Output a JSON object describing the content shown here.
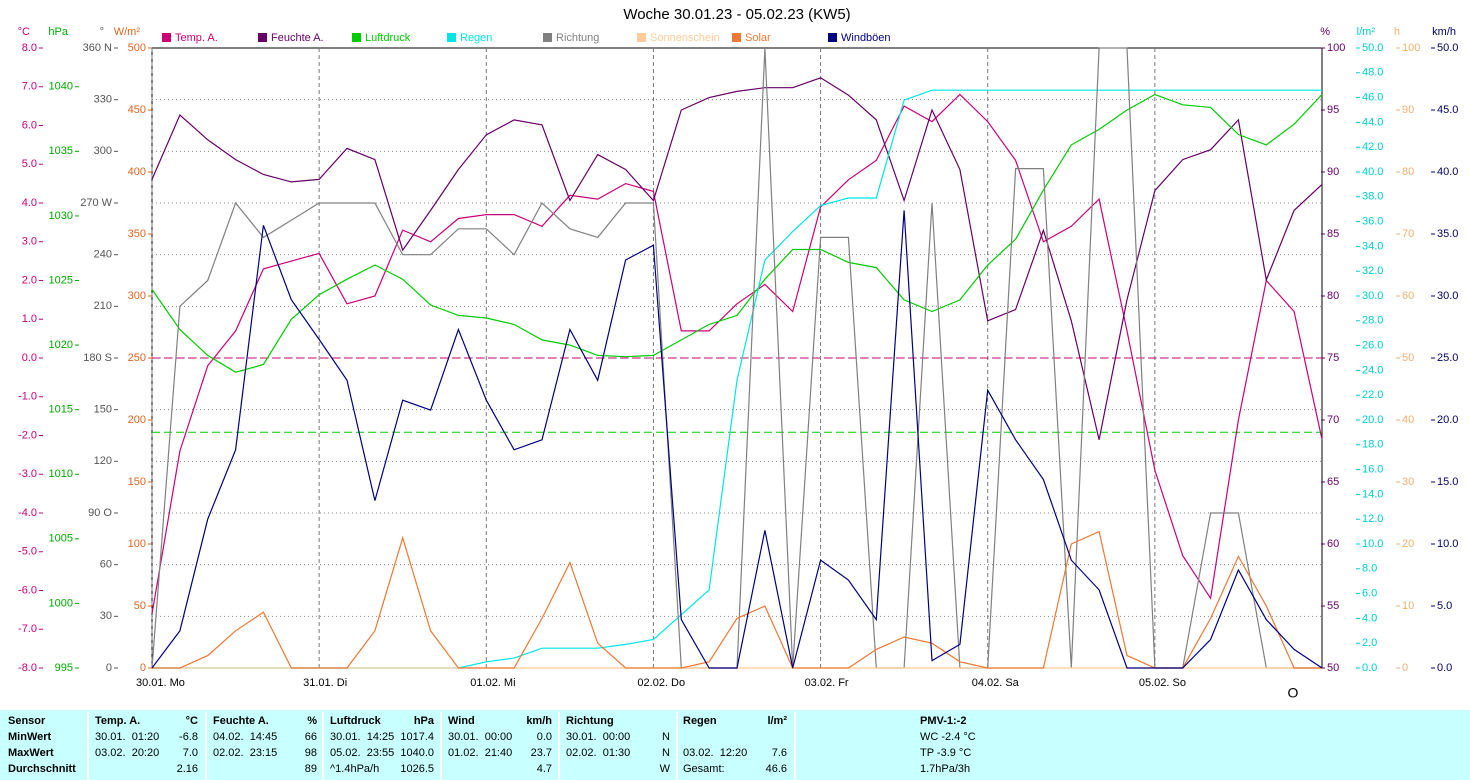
{
  "chart_data": {
    "type": "line",
    "title": "Woche 30.01.23 - 05.02.23 (KW5)",
    "annotation": "O",
    "x": [
      0,
      4,
      8,
      12,
      16,
      20,
      24,
      28,
      32,
      36,
      40,
      44,
      48,
      52,
      56,
      60,
      64,
      68,
      72,
      76,
      80,
      84,
      88,
      92,
      96,
      100,
      104,
      108,
      112,
      116,
      120,
      124,
      128,
      132,
      136,
      140,
      144,
      148,
      152,
      156,
      160,
      164,
      168
    ],
    "xlim": [
      0,
      168
    ],
    "xticks": [
      {
        "value": 0,
        "label": "30.01. Mo"
      },
      {
        "value": 24,
        "label": "31.01. Di"
      },
      {
        "value": 48,
        "label": "01.02. Mi"
      },
      {
        "value": 72,
        "label": "02.02. Do"
      },
      {
        "value": 96,
        "label": "03.02. Fr"
      },
      {
        "value": 120,
        "label": "04.02. Sa"
      },
      {
        "value": 144,
        "label": "05.02. So"
      }
    ],
    "axes": [
      {
        "unit": "°C",
        "color": "#cc0077",
        "lim": [
          -8,
          8
        ],
        "ticks": [
          {
            "value": -8,
            "label": "-8.0"
          },
          {
            "value": -7,
            "label": "-7.0"
          },
          {
            "value": -6,
            "label": "-6.0"
          },
          {
            "value": -5,
            "label": "-5.0"
          },
          {
            "value": -4,
            "label": "-4.0"
          },
          {
            "value": -3,
            "label": "-3.0"
          },
          {
            "value": -2,
            "label": "-2.0"
          },
          {
            "value": -1,
            "label": "-1.0"
          },
          {
            "value": 0,
            "label": "0.0"
          },
          {
            "value": 1,
            "label": "1.0"
          },
          {
            "value": 2,
            "label": "2.0"
          },
          {
            "value": 3,
            "label": "3.0"
          },
          {
            "value": 4,
            "label": "4.0"
          },
          {
            "value": 5,
            "label": "5.0"
          },
          {
            "value": 6,
            "label": "6.0"
          },
          {
            "value": 7,
            "label": "7.0"
          },
          {
            "value": 8,
            "label": "8.0"
          }
        ]
      },
      {
        "unit": "hPa",
        "color": "#00aa00",
        "lim": [
          995,
          1043
        ],
        "ticks": [
          995,
          1000,
          1005,
          1010,
          1015,
          1020,
          1025,
          1030,
          1035,
          1040
        ]
      },
      {
        "unit": "°",
        "color": "#555555",
        "lim": [
          0,
          360
        ],
        "grid": true,
        "ticks": [
          0,
          30,
          60,
          {
            "value": 90,
            "label": "90 O"
          },
          120,
          150,
          {
            "value": 180,
            "label": "180 S"
          },
          210,
          240,
          {
            "value": 270,
            "label": "270 W"
          },
          300,
          330,
          {
            "value": 360,
            "label": "360 N"
          }
        ]
      },
      {
        "unit": "W/m²",
        "color": "#dd6622",
        "lim": [
          0,
          500
        ],
        "ticks": [
          0,
          50,
          100,
          150,
          200,
          250,
          300,
          350,
          400,
          450,
          500
        ]
      },
      {
        "unit": "%",
        "color": "#660066",
        "lim": [
          50,
          100
        ],
        "ticks": [
          50,
          55,
          60,
          65,
          70,
          75,
          80,
          85,
          90,
          95,
          100
        ]
      },
      {
        "unit": "l/m²",
        "color": "#00cccc",
        "lim": [
          0,
          50
        ],
        "ticks": [
          {
            "value": 0,
            "label": "0.0"
          },
          {
            "value": 2,
            "label": "2.0"
          },
          {
            "value": 4,
            "label": "4.0"
          },
          {
            "value": 6,
            "label": "6.0"
          },
          {
            "value": 8,
            "label": "8.0"
          },
          {
            "value": 10,
            "label": "10.0"
          },
          {
            "value": 12,
            "label": "12.0"
          },
          {
            "value": 14,
            "label": "14.0"
          },
          {
            "value": 16,
            "label": "16.0"
          },
          {
            "value": 18,
            "label": "18.0"
          },
          {
            "value": 20,
            "label": "20.0"
          },
          {
            "value": 22,
            "label": "22.0"
          },
          {
            "value": 24,
            "label": "24.0"
          },
          {
            "value": 26,
            "label": "26.0"
          },
          {
            "value": 28,
            "label": "28.0"
          },
          {
            "value": 30,
            "label": "30.0"
          },
          {
            "value": 32,
            "label": "32.0"
          },
          {
            "value": 34,
            "label": "34.0"
          },
          {
            "value": 36,
            "label": "36.0"
          },
          {
            "value": 38,
            "label": "38.0"
          },
          {
            "value": 40,
            "label": "40.0"
          },
          {
            "value": 42,
            "label": "42.0"
          },
          {
            "value": 44,
            "label": "44.0"
          },
          {
            "value": 46,
            "label": "46.0"
          },
          {
            "value": 48,
            "label": "48.0"
          },
          {
            "value": 50,
            "label": "50.0"
          }
        ]
      },
      {
        "unit": "h",
        "color": "#f0b070",
        "lim": [
          0,
          100
        ],
        "ticks": [
          0,
          10,
          20,
          30,
          40,
          50,
          60,
          70,
          80,
          90,
          100
        ]
      },
      {
        "unit": "km/h",
        "color": "#000066",
        "lim": [
          0,
          50
        ],
        "ticks": [
          {
            "value": 0,
            "label": "0.0"
          },
          {
            "value": 5,
            "label": "5.0"
          },
          {
            "value": 10,
            "label": "10.0"
          },
          {
            "value": 15,
            "label": "15.0"
          },
          {
            "value": 20,
            "label": "20.0"
          },
          {
            "value": 25,
            "label": "25.0"
          },
          {
            "value": 30,
            "label": "30.0"
          },
          {
            "value": 35,
            "label": "35.0"
          },
          {
            "value": 40,
            "label": "40.0"
          },
          {
            "value": 45,
            "label": "45.0"
          },
          {
            "value": 50,
            "label": "50.0"
          }
        ]
      }
    ],
    "reference_lines": [
      {
        "axis": 0,
        "value": 0,
        "color": "#cc0077"
      },
      {
        "axis": 1,
        "value": 1013.25,
        "color": "#00cc00"
      }
    ],
    "series": [
      {
        "name": "Temp. A.",
        "color": "#cc0077",
        "axis": 0,
        "values": [
          -6.6,
          -2.4,
          -0.2,
          0.7,
          2.3,
          2.5,
          2.7,
          1.4,
          1.6,
          3.3,
          3.0,
          3.6,
          3.7,
          3.7,
          3.4,
          4.2,
          4.1,
          4.5,
          4.3,
          0.7,
          0.7,
          1.4,
          1.9,
          1.2,
          3.9,
          4.6,
          5.1,
          6.5,
          6.1,
          6.8,
          6.1,
          5.1,
          3.0,
          3.4,
          4.1,
          0.7,
          -2.9,
          -5.1,
          -6.2,
          -1.6,
          2.0,
          1.2,
          -2.1
        ]
      },
      {
        "name": "Feuchte A.",
        "color": "#660066",
        "axis": 4,
        "values": [
          89.4,
          94.6,
          92.6,
          91,
          89.8,
          89.2,
          89.4,
          91.9,
          91,
          83.7,
          86.9,
          90.2,
          93,
          94.2,
          93.8,
          87.7,
          91.4,
          90.2,
          87.7,
          95,
          96,
          96.5,
          96.8,
          96.8,
          97.6,
          96.2,
          94.2,
          87.7,
          95,
          90.2,
          78,
          78.9,
          85.3,
          78,
          68.4,
          79.7,
          88.5,
          91,
          91.8,
          94.2,
          81.3,
          86.9,
          89
        ]
      },
      {
        "name": "Luftdruck",
        "color": "#00cc00",
        "axis": 1,
        "values": [
          1024.3,
          1021.2,
          1019.2,
          1017.9,
          1018.5,
          1022,
          1023.9,
          1025.1,
          1026.2,
          1025.1,
          1023.1,
          1022.3,
          1022.1,
          1021.6,
          1020.4,
          1020,
          1019.2,
          1019.1,
          1019.2,
          1020.4,
          1021.6,
          1022.3,
          1025.1,
          1027.4,
          1027.4,
          1026.4,
          1026,
          1023.5,
          1022.6,
          1023.5,
          1026.2,
          1028.2,
          1032,
          1035.5,
          1036.7,
          1038.2,
          1039.4,
          1038.6,
          1038.4,
          1036.3,
          1035.5,
          1037.1,
          1039.4
        ]
      },
      {
        "name": "Regen",
        "color": "#00e5e5",
        "axis": 5,
        "values": [
          0,
          0,
          0,
          0,
          0,
          0,
          0,
          0,
          0,
          0,
          0,
          0,
          0.5,
          0.8,
          1.6,
          1.6,
          1.6,
          1.9,
          2.3,
          4.3,
          6.3,
          23.2,
          32.9,
          35.2,
          37.3,
          37.9,
          37.9,
          45.8,
          46.6,
          46.6,
          46.6,
          46.6,
          46.6,
          46.6,
          46.6,
          46.6,
          46.6,
          46.6,
          46.6,
          46.6,
          46.6,
          46.6,
          46.6
        ]
      },
      {
        "name": "Richtung",
        "color": "#808080",
        "axis": 2,
        "values": [
          0,
          210,
          225,
          270,
          250,
          260,
          270,
          270,
          270,
          240,
          240,
          255,
          255,
          240,
          270,
          255,
          250,
          270,
          270,
          0,
          0,
          0,
          360,
          0,
          250,
          250,
          0,
          0,
          270,
          0,
          0,
          290,
          290,
          0,
          360,
          360,
          0,
          0,
          90,
          90,
          0,
          0,
          0
        ]
      },
      {
        "name": "Sonnenschein",
        "color": "#ffcc99",
        "axis": 6,
        "values": [
          0,
          0,
          0,
          0,
          0,
          0,
          0,
          0,
          0,
          0,
          0,
          0,
          0,
          0,
          0,
          0,
          0,
          0,
          0,
          0,
          0,
          0,
          0,
          0,
          0,
          0,
          0,
          0,
          0,
          0,
          0,
          0,
          0,
          0,
          0,
          0,
          0,
          0,
          0,
          0,
          0,
          0,
          0
        ]
      },
      {
        "name": "Solar",
        "color": "#ee7733",
        "axis": 3,
        "values": [
          0,
          0,
          10,
          30,
          45,
          0,
          0,
          0,
          30,
          105,
          30,
          0,
          0,
          0,
          40,
          85,
          20,
          0,
          0,
          0,
          5,
          40,
          50,
          0,
          0,
          0,
          15,
          25,
          20,
          5,
          0,
          0,
          0,
          100,
          110,
          10,
          0,
          0,
          40,
          90,
          50,
          0,
          0
        ]
      },
      {
        "name": "Windböen",
        "color": "#000080",
        "axis": 7,
        "values": [
          0,
          3,
          12,
          17.6,
          35.7,
          29.7,
          26.5,
          23.2,
          13.5,
          21.6,
          20.8,
          27.3,
          21.6,
          17.6,
          18.4,
          27.3,
          23.2,
          32.9,
          34.1,
          3.9,
          0,
          0,
          11.1,
          0,
          8.7,
          7.1,
          3.9,
          36.9,
          0.6,
          1.9,
          22.4,
          18.4,
          15.2,
          8.7,
          6.3,
          0,
          0,
          0,
          2.3,
          7.9,
          3.9,
          1.5,
          0
        ]
      }
    ]
  },
  "table": {
    "columns": [
      {
        "title": "Sensor"
      },
      {
        "title": "Temp. A.",
        "unit": "°C"
      },
      {
        "title": "Feuchte A.",
        "unit": "%"
      },
      {
        "title": "Luftdruck",
        "unit": "hPa"
      },
      {
        "title": "Wind",
        "unit": "km/h"
      },
      {
        "title": "Richtung"
      },
      {
        "title": "Regen",
        "unit": "l/m²"
      },
      {
        "title": "PMV-1:-2"
      }
    ],
    "rows": [
      {
        "label": "MinWert",
        "cells": [
          {
            "time": "30.01.  01:20",
            "value": "-6.8"
          },
          {
            "time": "04.02.  14:45",
            "value": "66"
          },
          {
            "time": "30.01.  14:25",
            "value": "1017.4"
          },
          {
            "time": "30.01.  00:00",
            "value": "0.0"
          },
          {
            "time": "30.01.  00:00",
            "value": "N"
          },
          {},
          {
            "value": "WC -2.4 °C"
          }
        ]
      },
      {
        "label": "MaxWert",
        "cells": [
          {
            "time": "03.02.  20:20",
            "value": "7.0"
          },
          {
            "time": "02.02.  23:15",
            "value": "98"
          },
          {
            "time": "05.02.  23:55",
            "value": "1040.0"
          },
          {
            "time": "01.02.  21:40",
            "value": "23.7"
          },
          {
            "time": "02.02.  01:30",
            "value": "N"
          },
          {
            "time": "03.02.  12:20",
            "value": "7.6"
          },
          {
            "value": "TP -3.9 °C"
          }
        ]
      },
      {
        "label": "Durchschnitt",
        "cells": [
          {
            "value": "2.16"
          },
          {
            "value": "89"
          },
          {
            "time": "^1.4hPa/h",
            "value": "1026.5"
          },
          {
            "value": "4.7"
          },
          {
            "value": "W"
          },
          {
            "time": "Gesamt:",
            "value": "46.6"
          },
          {
            "value": "1.7hPa/3h"
          }
        ]
      }
    ]
  }
}
